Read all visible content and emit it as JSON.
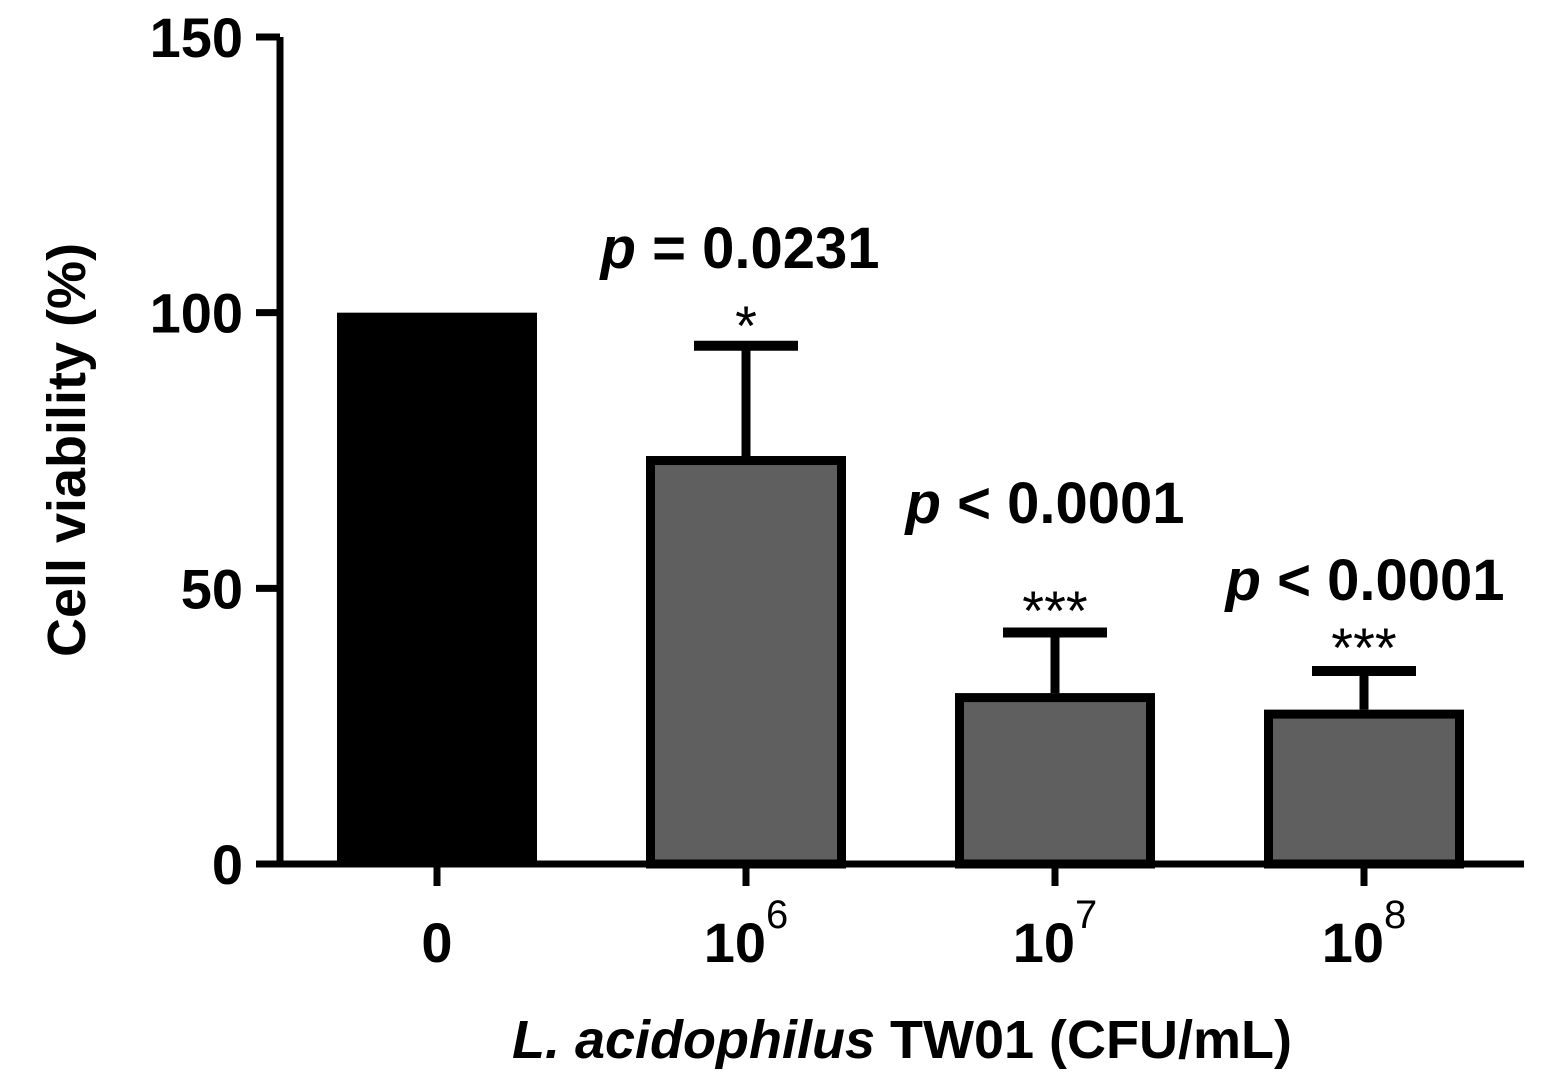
{
  "chart_data": {
    "type": "bar",
    "xlabel_italic": "L. acidophilus",
    "xlabel_rest": " TW01 (CFU/mL)",
    "ylabel": "Cell viability (%)",
    "ylim": [
      0,
      150
    ],
    "yticks": [
      0,
      50,
      100,
      150
    ],
    "categories": [
      {
        "base": "0",
        "exp": ""
      },
      {
        "base": "10",
        "exp": "6"
      },
      {
        "base": "10",
        "exp": "7"
      },
      {
        "base": "10",
        "exp": "8"
      }
    ],
    "values": [
      100,
      74,
      31,
      28
    ],
    "errors": [
      0,
      20,
      11,
      7
    ],
    "colors": [
      "#000000",
      "#5f5f5f",
      "#5f5f5f",
      "#5f5f5f"
    ],
    "stars": [
      "",
      "*",
      "***",
      "***"
    ],
    "p_annotations": [
      {
        "p": "p",
        "text": " = 0.0231"
      },
      {
        "p": "p",
        "text": " < 0.0001"
      },
      {
        "p": "p",
        "text": " < 0.0001"
      }
    ],
    "grid": false,
    "legend": "none"
  }
}
